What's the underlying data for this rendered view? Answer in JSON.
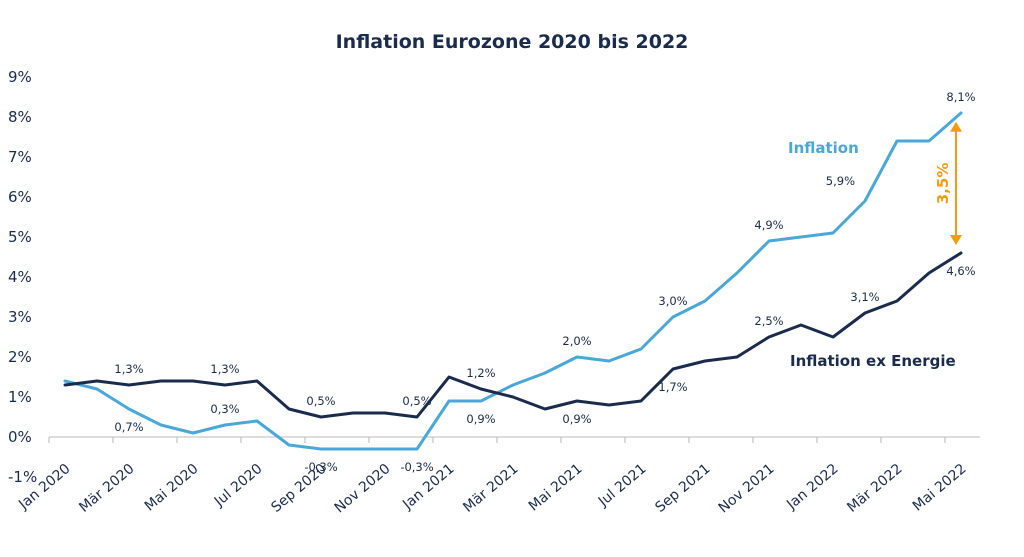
{
  "chart_data": {
    "type": "line",
    "title": "Inflation Eurozone 2020 bis 2022",
    "xlabel": "",
    "ylabel": "",
    "ylim": [
      -1,
      9
    ],
    "yticks": [
      "-1%",
      "0%",
      "1%",
      "2%",
      "3%",
      "4%",
      "5%",
      "6%",
      "7%",
      "8%",
      "9%"
    ],
    "grid": false,
    "x": [
      "Jan 2020",
      "Feb 2020",
      "Mär 2020",
      "Apr 2020",
      "Mai 2020",
      "Jun 2020",
      "Jul 2020",
      "Aug 2020",
      "Sep 2020",
      "Okt 2020",
      "Nov 2020",
      "Dez 2020",
      "Jan 2021",
      "Feb 2021",
      "Mär 2021",
      "Apr 2021",
      "Mai 2021",
      "Jun 2021",
      "Jul 2021",
      "Aug 2021",
      "Sep 2021",
      "Okt 2021",
      "Nov 2021",
      "Dez 2021",
      "Jan 2022",
      "Feb 2022",
      "Mär 2022",
      "Apr 2022",
      "Mai 2022"
    ],
    "xtick_labels": [
      "Jan 2020",
      "Mär 2020",
      "Mai 2020",
      "Jul 2020",
      "Sep 2020",
      "Nov 2020",
      "Jan 2021",
      "Mär 2021",
      "Mai 2021",
      "Jul 2021",
      "Sep 2021",
      "Nov 2021",
      "Jan 2022",
      "Mär 2022",
      "Mai 2022"
    ],
    "series": [
      {
        "name": "Inflation",
        "color": "#4aa8d8",
        "values": [
          1.4,
          1.2,
          0.7,
          0.3,
          0.1,
          0.3,
          0.4,
          -0.2,
          -0.3,
          -0.3,
          -0.3,
          -0.3,
          0.9,
          0.9,
          1.3,
          1.6,
          2.0,
          1.9,
          2.2,
          3.0,
          3.4,
          4.1,
          4.9,
          5.0,
          5.1,
          5.9,
          7.4,
          7.4,
          8.1
        ],
        "labels": [
          {
            "i": 2,
            "text": "0,7%",
            "pos": "below"
          },
          {
            "i": 5,
            "text": "0,3%",
            "pos": "above"
          },
          {
            "i": 8,
            "text": "-0,3%",
            "pos": "below"
          },
          {
            "i": 11,
            "text": "-0,3%",
            "pos": "below"
          },
          {
            "i": 13,
            "text": "0,9%",
            "pos": "below"
          },
          {
            "i": 16,
            "text": "2,0%",
            "pos": "above"
          },
          {
            "i": 19,
            "text": "3,0%",
            "pos": "above"
          },
          {
            "i": 22,
            "text": "4,9%",
            "pos": "above"
          },
          {
            "i": 25,
            "text": "5,9%",
            "pos": "above-left"
          },
          {
            "i": 28,
            "text": "8,1%",
            "pos": "above"
          }
        ]
      },
      {
        "name": "Inflation ex Energie",
        "color": "#1a2b4c",
        "values": [
          1.3,
          1.4,
          1.3,
          1.4,
          1.4,
          1.3,
          1.4,
          0.7,
          0.5,
          0.6,
          0.6,
          0.5,
          1.5,
          1.2,
          1.0,
          0.7,
          0.9,
          0.8,
          0.9,
          1.7,
          1.9,
          2.0,
          2.5,
          2.8,
          2.5,
          3.1,
          3.4,
          4.1,
          4.6
        ],
        "labels": [
          {
            "i": 2,
            "text": "1,3%",
            "pos": "above"
          },
          {
            "i": 5,
            "text": "1,3%",
            "pos": "above"
          },
          {
            "i": 8,
            "text": "0,5%",
            "pos": "above"
          },
          {
            "i": 11,
            "text": "0,5%",
            "pos": "above"
          },
          {
            "i": 13,
            "text": "1,2%",
            "pos": "above"
          },
          {
            "i": 16,
            "text": "0,9%",
            "pos": "below"
          },
          {
            "i": 19,
            "text": "1,7%",
            "pos": "below"
          },
          {
            "i": 22,
            "text": "2,5%",
            "pos": "above"
          },
          {
            "i": 25,
            "text": "3,1%",
            "pos": "above"
          },
          {
            "i": 28,
            "text": "4,6%",
            "pos": "below"
          }
        ]
      }
    ],
    "annotation": {
      "text": "3,5%",
      "from": 4.6,
      "to": 8.1,
      "color": "#f39c12"
    }
  }
}
